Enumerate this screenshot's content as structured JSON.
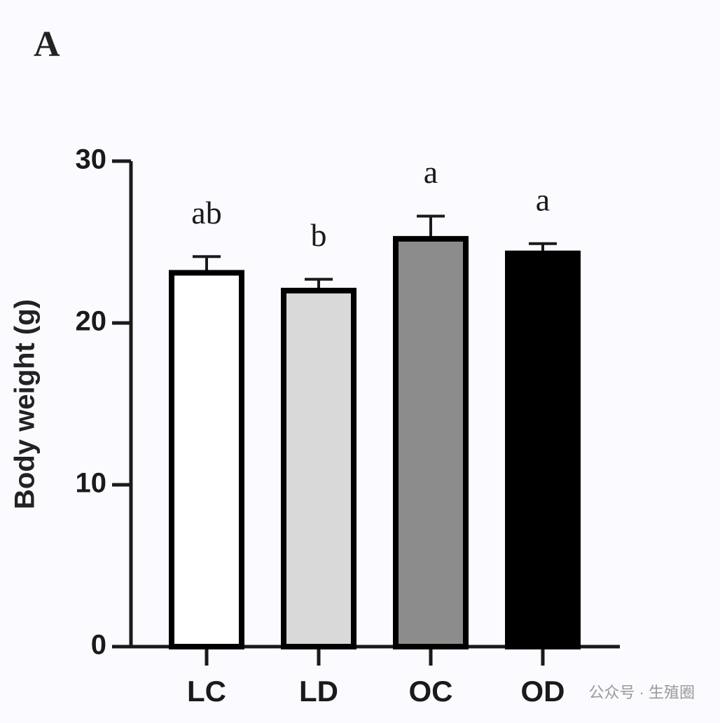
{
  "chart_data": {
    "type": "bar",
    "panel_label": "A",
    "y_label": "Body weight (g)",
    "categories": [
      "LC",
      "LD",
      "OC",
      "OD"
    ],
    "values": [
      23.1,
      22.0,
      25.2,
      24.3
    ],
    "errors": [
      1.0,
      0.7,
      1.4,
      0.6
    ],
    "annotations": [
      "ab",
      "b",
      "a",
      "a"
    ],
    "colors": [
      "#ffffff",
      "#d9d9d9",
      "#8c8c8c",
      "#000000"
    ],
    "edge_color": "#000000",
    "ylim": [
      0,
      30
    ],
    "yticks": [
      0,
      10,
      20,
      30
    ],
    "grid": false,
    "watermark": "公众号 · 生殖圈"
  }
}
